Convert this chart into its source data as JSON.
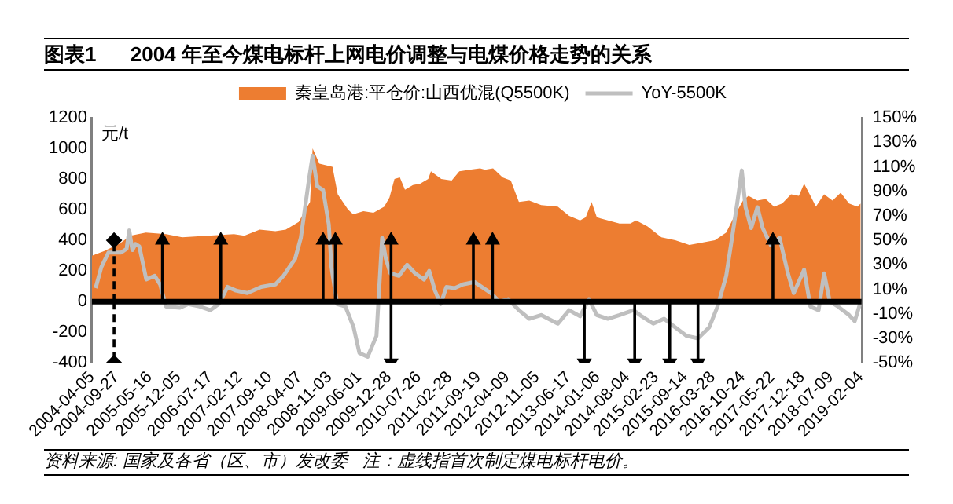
{
  "chart_data": {
    "type": "area",
    "title": "图表1      2004 年至今煤电标杆上网电价调整与电煤价格走势的关系",
    "ylabel": "元/t",
    "annotations": [
      "资料来源: 国家及各省（区、市）发改委   注：虚线指首次制定煤电标杆电价。"
    ],
    "xlim": [
      "2004-04-05",
      "2019-02-10"
    ],
    "xticks": [
      "2004-04-05",
      "2004-09-27",
      "2005-05-16",
      "2005-12-05",
      "2006-07-17",
      "2007-02-12",
      "2007-09-10",
      "2008-04-07",
      "2008-11-03",
      "2009-06-01",
      "2009-12-28",
      "2010-07-26",
      "2011-02-28",
      "2011-09-19",
      "2012-04-09",
      "2012-11-05",
      "2013-06-17",
      "2014-01-06",
      "2014-08-04",
      "2015-02-23",
      "2015-09-14",
      "2016-03-28",
      "2016-10-24",
      "2017-05-22",
      "2017-12-18",
      "2018-07-09",
      "2019-02-04"
    ],
    "ylim": [
      -400,
      1200
    ],
    "yticks": [
      -400,
      -200,
      0,
      200,
      400,
      600,
      800,
      1000,
      1200
    ],
    "y2lim": [
      -50,
      150
    ],
    "y2ticks": [
      {
        "value": -50,
        "label": "-50%"
      },
      {
        "value": -30,
        "label": "-30%"
      },
      {
        "value": -10,
        "label": "-10%"
      },
      {
        "value": 10,
        "label": "10%"
      },
      {
        "value": 30,
        "label": "30%"
      },
      {
        "value": 50,
        "label": "50%"
      },
      {
        "value": 70,
        "label": "70%"
      },
      {
        "value": 90,
        "label": "90%"
      },
      {
        "value": 110,
        "label": "110%"
      },
      {
        "value": 130,
        "label": "130%"
      },
      {
        "value": 150,
        "label": "150%"
      }
    ],
    "grid": false,
    "legend": "top",
    "ref_lines": [
      {
        "axis": "y",
        "value": 0,
        "color": "#000000"
      }
    ],
    "series": [
      {
        "name": "秦皇岛港:平仓价:山西优混(Q5500K)",
        "color": "#ed7d31",
        "x": [
          "2004-04-05",
          "2004-07-01",
          "2004-10-20",
          "2005-01-01",
          "2005-04-20",
          "2005-09-10",
          "2006-01-01",
          "2006-07-01",
          "2007-01-01",
          "2007-03-15",
          "2007-07-01",
          "2007-10-20",
          "2008-01-01",
          "2008-04-01",
          "2008-05-25",
          "2008-06-20",
          "2008-07-08",
          "2008-08-25",
          "2008-11-25",
          "2009-01-01",
          "2009-03-15",
          "2009-04-20",
          "2009-07-01",
          "2009-09-10",
          "2009-11-25",
          "2010-01-01",
          "2010-02-05",
          "2010-03-15",
          "2010-04-20",
          "2010-06-15",
          "2010-08-05",
          "2010-10-01",
          "2010-10-20",
          "2011-01-01",
          "2011-03-15",
          "2011-05-08",
          "2011-07-20",
          "2011-10-01",
          "2011-11-05",
          "2012-01-01",
          "2012-03-08",
          "2012-05-05",
          "2012-07-01",
          "2012-09-12",
          "2012-12-05",
          "2013-04-01",
          "2013-06-20",
          "2013-09-05",
          "2013-10-15",
          "2013-11-25",
          "2014-01-01",
          "2014-03-20",
          "2014-06-10",
          "2014-08-25",
          "2014-10-05",
          "2014-12-25",
          "2015-04-01",
          "2015-07-08",
          "2015-10-15",
          "2015-12-15",
          "2016-04-12",
          "2016-07-01",
          "2016-08-28",
          "2016-10-27",
          "2016-12-05",
          "2017-02-05",
          "2017-04-05",
          "2017-06-03",
          "2017-07-30",
          "2017-10-01",
          "2017-11-25",
          "2018-01-01",
          "2018-02-15",
          "2018-03-25",
          "2018-05-22",
          "2018-07-20",
          "2018-09-16",
          "2018-11-14",
          "2019-01-11",
          "2019-02-04"
        ],
        "values": [
          300,
          330,
          380,
          430,
          450,
          440,
          420,
          430,
          440,
          430,
          470,
          460,
          470,
          520,
          610,
          650,
          1000,
          900,
          880,
          700,
          600,
          570,
          590,
          580,
          620,
          680,
          800,
          810,
          730,
          760,
          770,
          800,
          850,
          800,
          790,
          850,
          860,
          870,
          860,
          870,
          810,
          790,
          650,
          660,
          630,
          620,
          560,
          530,
          550,
          650,
          550,
          530,
          510,
          510,
          530,
          490,
          420,
          400,
          370,
          380,
          400,
          450,
          560,
          660,
          690,
          660,
          670,
          620,
          640,
          700,
          690,
          770,
          690,
          620,
          700,
          660,
          710,
          640,
          620,
          640
        ]
      },
      {
        "name": "YoY-5500K",
        "type": "line",
        "axis": "y2",
        "color": "#bfbfbf",
        "x": [
          "2004-05-01",
          "2004-06-10",
          "2004-07-30",
          "2004-10-27",
          "2004-12-05",
          "2004-12-24",
          "2005-01-15",
          "2005-02-06",
          "2005-03-05",
          "2005-04-05",
          "2005-04-23",
          "2005-06-21",
          "2005-07-30",
          "2005-09-09",
          "2005-12-16",
          "2006-02-13",
          "2006-05-04",
          "2006-07-19",
          "2006-09-16",
          "2006-11-17",
          "2007-01-15",
          "2007-04-05",
          "2007-07-12",
          "2007-10-20",
          "2007-12-16",
          "2008-01-26",
          "2008-03-07",
          "2008-04-16",
          "2008-06-14",
          "2008-07-08",
          "2008-08-10",
          "2008-09-20",
          "2008-10-30",
          "2008-11-18",
          "2008-12-28",
          "2009-02-24",
          "2009-04-23",
          "2009-06-03",
          "2009-07-31",
          "2009-10-01",
          "2009-11-10",
          "2009-12-06",
          "2010-01-08",
          "2010-03-08",
          "2010-05-05",
          "2010-07-01",
          "2010-09-02",
          "2010-10-08",
          "2010-11-17",
          "2010-12-28",
          "2011-02-06",
          "2011-04-05",
          "2011-06-03",
          "2011-08-22",
          "2011-12-16",
          "2012-02-14",
          "2012-04-16",
          "2012-07-01",
          "2012-09-12",
          "2012-12-05",
          "2013-04-01",
          "2013-06-20",
          "2013-09-05",
          "2013-11-07",
          "2014-01-01",
          "2014-03-20",
          "2014-06-10",
          "2014-09-16",
          "2014-11-14",
          "2015-02-03",
          "2015-04-20",
          "2015-07-08",
          "2015-09-27",
          "2015-12-15",
          "2016-03-03",
          "2016-05-01",
          "2016-07-01",
          "2016-08-07",
          "2016-09-16",
          "2016-10-19",
          "2016-11-14",
          "2016-12-24",
          "2017-02-06",
          "2017-03-15",
          "2017-05-12",
          "2017-07-12",
          "2017-09-09",
          "2017-10-20",
          "2018-01-01",
          "2018-02-14",
          "2018-04-13",
          "2018-05-22",
          "2018-07-01",
          "2018-08-28",
          "2018-11-14",
          "2018-12-24",
          "2019-02-04"
        ],
        "values": [
          11,
          28,
          40,
          40,
          43,
          58,
          42,
          47,
          45,
          28,
          18,
          21,
          14,
          -4,
          -5,
          -2,
          -4,
          -7,
          -2,
          12,
          9,
          7,
          12,
          14,
          21,
          28,
          35,
          52,
          101,
          119,
          94,
          91,
          63,
          28,
          -2,
          -4,
          -21,
          -42,
          -45,
          -28,
          52,
          35,
          23,
          21,
          30,
          23,
          18,
          25,
          9,
          -2,
          12,
          11,
          14,
          16,
          7,
          0,
          2,
          -7,
          -14,
          -11,
          -18,
          -7,
          -12,
          2,
          -11,
          -14,
          -11,
          -7,
          -12,
          -18,
          -14,
          -21,
          -28,
          -30,
          -21,
          -4,
          21,
          49,
          80,
          107,
          77,
          60,
          77,
          60,
          46,
          52,
          23,
          7,
          26,
          -4,
          -7,
          23,
          0,
          -4,
          -11,
          -16,
          0
        ]
      },
      {
        "type": "lollipop",
        "color": "#000000",
        "marker": "triangle",
        "line_style": "solid",
        "x": [
          "2005-08-15",
          "2006-09-30",
          "2008-09-20",
          "2008-12-15",
          "2010-01-12",
          "2011-08-15",
          "2011-12-28",
          "2017-05-26"
        ],
        "values": [
          400,
          400,
          400,
          400,
          400,
          400,
          400,
          400
        ]
      },
      {
        "type": "lollipop",
        "color": "#000000",
        "marker": "triangle",
        "line_style": "solid",
        "x": [
          "2010-01-12",
          "2013-10-05",
          "2014-09-25",
          "2015-05-30",
          "2015-12-15"
        ],
        "values": [
          -400,
          -400,
          -400,
          -400,
          -400
        ]
      },
      {
        "type": "lollipop",
        "color": "#000000",
        "marker": "diamond",
        "line_style": "dashed",
        "x": [
          "2004-09-08",
          "2004-09-08"
        ],
        "values": [
          400,
          -400
        ]
      }
    ]
  }
}
